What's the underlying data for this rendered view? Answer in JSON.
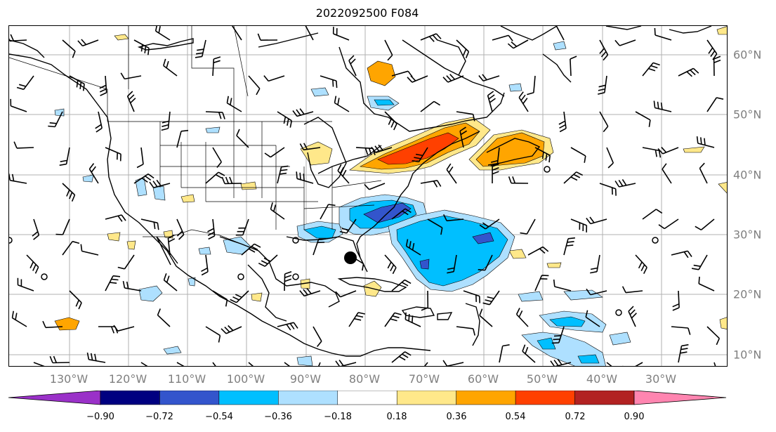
{
  "title": "2022092500 F084",
  "map": {
    "lon_labels": [
      "130°W",
      "120°W",
      "110°W",
      "100°W",
      "90°W",
      "80°W",
      "70°W",
      "60°W",
      "50°W",
      "40°W",
      "30°W"
    ],
    "lat_labels": [
      "60°N",
      "50°N",
      "40°N",
      "30°N",
      "20°N",
      "10°N"
    ],
    "gridline_color": "#b0b0b0",
    "coastline_color": "#000000",
    "wind_barbs_shown": true
  },
  "colorbar": {
    "ticks": [
      "−0.90",
      "−0.72",
      "−0.54",
      "−0.36",
      "−0.18",
      "0.18",
      "0.36",
      "0.54",
      "0.72",
      "0.90"
    ],
    "under_color": "#9a31c8",
    "over_color": "#ff85b0",
    "bin_colors": [
      "#000080",
      "#3355cc",
      "#00bfff",
      "#aee0ff",
      "#ffffff",
      "#ffe88a",
      "#ffa500",
      "#ff4000",
      "#b22222"
    ]
  }
}
